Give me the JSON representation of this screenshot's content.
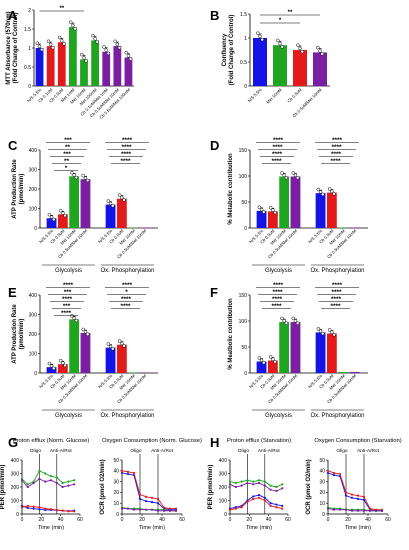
{
  "colors": {
    "blue": "#1414e6",
    "red": "#e31a1c",
    "green": "#1fa51f",
    "purple": "#7b1fa2"
  },
  "chart_data": [
    {
      "panel": "A",
      "type": "bar",
      "ylabel": "MTT Absorbance (570nm)\n(Fold Change of Control)",
      "ylim": [
        0,
        2.0
      ],
      "yticks": [
        0,
        0.5,
        1.0,
        1.5,
        2.0
      ],
      "categories": [
        "N/S 5.5%",
        "Cb 0.1uM",
        "Cb 0.5uM",
        "Met 1mM",
        "Met 10mM",
        "Met 100mM",
        "Cb 0.1uM/Met 1mM",
        "Cb 0.5uM/Met 10mM",
        "Cb 0.5uM/Met 100mM"
      ],
      "values": [
        1.0,
        1.05,
        1.15,
        1.55,
        0.7,
        1.2,
        0.9,
        1.05,
        0.75
      ],
      "colors": [
        "blue",
        "red",
        "red",
        "green",
        "green",
        "green",
        "purple",
        "purple",
        "purple"
      ],
      "significance": [
        "**"
      ]
    },
    {
      "panel": "B",
      "type": "bar",
      "ylabel": "Confluency\n(Fold Change of Control)",
      "ylim": [
        0,
        1.5
      ],
      "yticks": [
        0,
        0.5,
        1.0,
        1.5
      ],
      "categories": [
        "N/S 5.5%",
        "Met 10mM",
        "Cb 0.5uM",
        "Cb 0.5uM/Met 10mM"
      ],
      "values": [
        1.0,
        0.85,
        0.75,
        0.7
      ],
      "colors": [
        "blue",
        "green",
        "red",
        "purple"
      ],
      "significance": [
        "**",
        "*"
      ]
    },
    {
      "panel": "C",
      "type": "bar",
      "ylabel": "ATP Production Rate\n(pmol/min)",
      "ylim": [
        0,
        400
      ],
      "yticks": [
        0,
        100,
        200,
        300,
        400
      ],
      "groups": [
        "Glycolysis",
        "Ox. Phosphorylation"
      ],
      "categories": [
        "N/S 5.5%",
        "Cb 0.5uM",
        "Met 10mM",
        "Cb 0.5uM/Met 10mM"
      ],
      "series": [
        {
          "values": [
            50,
            70,
            265,
            250
          ]
        },
        {
          "values": [
            120,
            150,
            2,
            2
          ]
        }
      ],
      "colors": [
        "blue",
        "red",
        "green",
        "purple"
      ],
      "significance": [
        "***",
        "**",
        "***",
        "**",
        "*",
        "****",
        "****",
        "****",
        "****"
      ]
    },
    {
      "panel": "D",
      "type": "bar",
      "ylabel": "% Metabolic contribution",
      "ylim": [
        0,
        150
      ],
      "yticks": [
        0,
        50,
        100,
        150
      ],
      "groups": [
        "Glycolysis",
        "Ox. Phosphorylation"
      ],
      "categories": [
        "N/S 5.5%",
        "Cb 0.5uM",
        "Met 10mM",
        "Cb 0.5uM/Met 10mM"
      ],
      "series": [
        {
          "values": [
            33,
            32,
            99,
            99
          ]
        },
        {
          "values": [
            67,
            68,
            1,
            1
          ]
        }
      ],
      "colors": [
        "blue",
        "red",
        "green",
        "purple"
      ],
      "significance": [
        "****",
        "****",
        "****",
        "****",
        "****",
        "****",
        "****",
        "****"
      ]
    },
    {
      "panel": "E",
      "type": "bar",
      "ylabel": "ATP Production Rate\n(pmol/min)",
      "ylim": [
        0,
        400
      ],
      "yticks": [
        0,
        100,
        200,
        300,
        400
      ],
      "groups": [
        "Glycolysis",
        "Ox. Phosphorylation"
      ],
      "categories": [
        "N/S 5.5%",
        "Cb 0.5uM",
        "Met 10mM",
        "Cb 0.5uM/Met 10mM"
      ],
      "series": [
        {
          "values": [
            30,
            45,
            275,
            205
          ]
        },
        {
          "values": [
            130,
            145,
            3,
            3
          ]
        }
      ],
      "colors": [
        "blue",
        "red",
        "green",
        "purple"
      ],
      "significance": [
        "****",
        "***",
        "****",
        "***",
        "****",
        "****",
        "*",
        "****",
        "****"
      ]
    },
    {
      "panel": "F",
      "type": "bar",
      "ylabel": "% Meatbolic contribution",
      "ylim": [
        0,
        150
      ],
      "yticks": [
        0,
        50,
        100,
        150
      ],
      "groups": [
        "Glycolysis",
        "Ox. Phosphorylation"
      ],
      "categories": [
        "N/S 5.5%",
        "Cb 0.5uM",
        "Met 10mM",
        "Cb 0.5uM/Met 10mM"
      ],
      "series": [
        {
          "values": [
            22,
            24,
            98,
            98
          ]
        },
        {
          "values": [
            78,
            76,
            2,
            2
          ]
        }
      ],
      "colors": [
        "blue",
        "red",
        "green",
        "purple"
      ],
      "significance": [
        "****",
        "****",
        "****",
        "****",
        "****",
        "****",
        "****",
        "****"
      ]
    },
    {
      "panel": "G1",
      "type": "line",
      "title": "Proton efflux (Norm. Glucose)",
      "ylabel": "PER (pmol/min)",
      "xlabel": "Time (min)",
      "ylim": [
        0,
        400
      ],
      "yticks": [
        0,
        100,
        200,
        300,
        400
      ],
      "xlim": [
        0,
        60
      ],
      "xticks": [
        0,
        20,
        40,
        60
      ],
      "annotations": [
        "Oligo",
        "Anti-A/Rot"
      ],
      "x": [
        0,
        6,
        12,
        18,
        24,
        30,
        36,
        42,
        48,
        54
      ],
      "series": [
        {
          "color": "blue",
          "values": [
            60,
            45,
            40,
            35,
            30,
            30,
            28,
            25,
            22,
            25
          ]
        },
        {
          "color": "red",
          "values": [
            50,
            60,
            55,
            50,
            40,
            35,
            30,
            25,
            20,
            20
          ]
        },
        {
          "color": "green",
          "values": [
            260,
            220,
            240,
            320,
            300,
            280,
            270,
            230,
            240,
            250
          ]
        },
        {
          "color": "purple",
          "values": [
            250,
            200,
            230,
            260,
            240,
            250,
            230,
            200,
            210,
            220
          ]
        }
      ]
    },
    {
      "panel": "G2",
      "type": "line",
      "title": "Oxygen Consumption (Norm. Glucose)",
      "ylabel": "OCR (pmol O2/min)",
      "xlabel": "Time (min)",
      "ylim": [
        0,
        50
      ],
      "yticks": [
        0,
        10,
        20,
        30,
        40,
        50
      ],
      "xlim": [
        0,
        60
      ],
      "xticks": [
        0,
        20,
        40,
        60
      ],
      "annotations": [
        "Oligo",
        "Anti-A/Rot"
      ],
      "x": [
        0,
        6,
        12,
        18,
        24,
        30,
        36,
        42,
        48,
        54
      ],
      "series": [
        {
          "color": "blue",
          "values": [
            38,
            37,
            36,
            14,
            12,
            11,
            10,
            5,
            4,
            4
          ]
        },
        {
          "color": "red",
          "values": [
            40,
            39,
            38,
            18,
            16,
            15,
            14,
            6,
            5,
            5
          ]
        },
        {
          "color": "green",
          "values": [
            6,
            5,
            5,
            5,
            4,
            4,
            4,
            4,
            3,
            3
          ]
        },
        {
          "color": "purple",
          "values": [
            5,
            5,
            4,
            4,
            4,
            4,
            3,
            3,
            3,
            3
          ]
        }
      ]
    },
    {
      "panel": "H1",
      "type": "line",
      "title": "Proton efflux (Starvation)",
      "ylabel": "PER (pmol/min)",
      "xlabel": "Time (min)",
      "ylim": [
        0,
        400
      ],
      "yticks": [
        0,
        100,
        200,
        300,
        400
      ],
      "xlim": [
        0,
        60
      ],
      "xticks": [
        0,
        20,
        40,
        60
      ],
      "annotations": [
        "Oligo",
        "Anti-A/Rot"
      ],
      "x": [
        0,
        6,
        12,
        18,
        24,
        30,
        36,
        42,
        48,
        54
      ],
      "series": [
        {
          "color": "blue",
          "values": [
            40,
            50,
            60,
            100,
            130,
            140,
            120,
            80,
            70,
            60
          ]
        },
        {
          "color": "red",
          "values": [
            30,
            40,
            50,
            90,
            110,
            120,
            100,
            60,
            50,
            40
          ]
        },
        {
          "color": "green",
          "values": [
            240,
            230,
            240,
            250,
            240,
            250,
            240,
            210,
            200,
            220
          ]
        },
        {
          "color": "purple",
          "values": [
            220,
            200,
            210,
            230,
            220,
            230,
            210,
            180,
            170,
            190
          ]
        }
      ]
    },
    {
      "panel": "H2",
      "type": "line",
      "title": "Oxygen Consumption (Starvation)",
      "ylabel": "OCR (pmol O2/min)",
      "xlabel": "Time (min)",
      "ylim": [
        0,
        50
      ],
      "yticks": [
        0,
        10,
        20,
        30,
        40,
        50
      ],
      "xlim": [
        0,
        60
      ],
      "xticks": [
        0,
        20,
        40,
        60
      ],
      "annotations": [
        "Oligo",
        "Anti-A/Rot"
      ],
      "x": [
        0,
        6,
        12,
        18,
        24,
        30,
        36,
        42,
        48,
        54
      ],
      "series": [
        {
          "color": "blue",
          "values": [
            38,
            36,
            35,
            17,
            15,
            14,
            13,
            4,
            3,
            3
          ]
        },
        {
          "color": "red",
          "values": [
            40,
            38,
            37,
            20,
            18,
            17,
            16,
            5,
            4,
            4
          ]
        },
        {
          "color": "green",
          "values": [
            6,
            5,
            5,
            4,
            4,
            4,
            4,
            3,
            3,
            3
          ]
        },
        {
          "color": "purple",
          "values": [
            5,
            4,
            4,
            4,
            3,
            3,
            3,
            3,
            3,
            3
          ]
        }
      ]
    }
  ]
}
